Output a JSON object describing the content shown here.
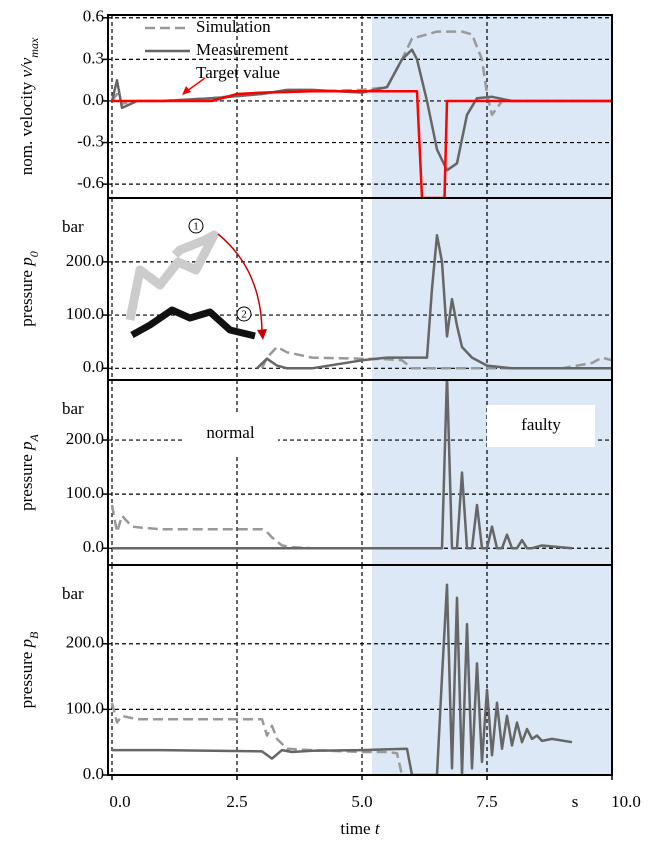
{
  "chart_data": [
    {
      "type": "line",
      "ylabel": [
        "nom. velocity ",
        "v/v",
        "max"
      ],
      "xlim": [
        -0.08,
        10
      ],
      "ylim": [
        -0.7,
        0.62
      ],
      "yticks": [
        {
          "value": 0.6,
          "label": "0.6"
        },
        {
          "value": 0.3,
          "label": "0.3"
        },
        {
          "value": 0,
          "label": "0.0"
        },
        {
          "value": -0.3,
          "label": "-0.3"
        },
        {
          "value": -0.6,
          "label": "-0.6"
        }
      ],
      "grid": true,
      "shade": {
        "x": [
          5.2,
          10
        ],
        "color": "#dce8f5"
      },
      "series": [
        {
          "name": "Simulation",
          "color": "#999999",
          "dashed": true,
          "x": [
            0,
            0.1,
            0.2,
            0.5,
            1,
            2,
            3,
            4,
            5,
            5.5,
            5.8,
            6,
            6.2,
            6.5,
            7,
            7.2,
            7.4,
            7.5,
            7.6,
            7.8,
            8,
            8.5,
            9,
            10
          ],
          "values": [
            0,
            0.05,
            -0.02,
            0,
            0,
            0.02,
            0.06,
            0.07,
            0.08,
            0.1,
            0.3,
            0.45,
            0.47,
            0.5,
            0.5,
            0.48,
            0.3,
            0.05,
            -0.1,
            0,
            0,
            0,
            0,
            0
          ]
        },
        {
          "name": "Measurement",
          "color": "#666666",
          "dashed": false,
          "x": [
            0,
            0.1,
            0.2,
            0.5,
            1,
            2,
            3,
            3.5,
            4,
            5,
            5.5,
            5.8,
            6,
            6.1,
            6.3,
            6.5,
            6.7,
            6.9,
            7.1,
            7.3,
            7.6,
            8,
            8.5,
            9,
            10
          ],
          "values": [
            0,
            0.15,
            -0.05,
            0,
            0,
            0.02,
            0.05,
            0.08,
            0.08,
            0.06,
            0.1,
            0.3,
            0.37,
            0.3,
            0,
            -0.35,
            -0.5,
            -0.45,
            -0.1,
            0.02,
            0.03,
            0,
            0,
            0,
            0
          ]
        },
        {
          "name": "Target value",
          "color": "#ff0000",
          "dashed": false,
          "x": [
            0,
            2,
            2.5,
            3,
            4,
            5.5,
            6.1,
            6.2,
            6.25,
            6.6,
            6.65,
            6.7,
            7,
            10
          ],
          "values": [
            0,
            0,
            0.05,
            0.06,
            0.07,
            0.07,
            0.07,
            -0.7,
            -0.7,
            -0.7,
            -0.7,
            0,
            0,
            0
          ]
        }
      ]
    },
    {
      "type": "line",
      "ylabel": [
        "pressure ",
        "p",
        "0"
      ],
      "yunit": "bar",
      "xlim": [
        -0.08,
        10
      ],
      "ylim": [
        -22,
        320
      ],
      "yticks": [
        {
          "value": 200,
          "label": "200.0"
        },
        {
          "value": 100,
          "label": "100.0"
        },
        {
          "value": 0,
          "label": "0.0"
        }
      ],
      "grid": true,
      "shade": {
        "x": [
          5.2,
          10
        ],
        "color": "#dce8f5"
      },
      "annotations": [
        "1",
        "2"
      ],
      "series": [
        {
          "name": "Simulation",
          "color": "#999999",
          "dashed": true,
          "x": [
            3,
            3.1,
            3.3,
            3.5,
            4,
            5,
            5.5,
            5.8,
            6,
            7,
            8,
            9,
            9.6,
            9.8,
            10
          ],
          "values": [
            0,
            20,
            40,
            30,
            20,
            18,
            17,
            15,
            0,
            0,
            0,
            0,
            10,
            20,
            15
          ]
        },
        {
          "name": "Measurement",
          "color": "#666666",
          "dashed": false,
          "x": [
            2.9,
            3.1,
            3.3,
            3.5,
            4,
            5,
            5.5,
            6,
            6.3,
            6.4,
            6.5,
            6.6,
            6.7,
            6.8,
            6.9,
            7,
            7.2,
            7.5,
            8,
            10
          ],
          "values": [
            0,
            18,
            5,
            0,
            0,
            15,
            20,
            20,
            20,
            150,
            250,
            200,
            60,
            130,
            80,
            40,
            20,
            5,
            0,
            0
          ]
        }
      ]
    },
    {
      "type": "line",
      "ylabel": [
        "pressure ",
        "p",
        "A"
      ],
      "yunit": "bar",
      "xlim": [
        -0.08,
        10
      ],
      "ylim": [
        -31,
        311
      ],
      "yticks": [
        {
          "value": 200,
          "label": "200.0"
        },
        {
          "value": 100,
          "label": "100.0"
        },
        {
          "value": 0,
          "label": "0.0"
        }
      ],
      "grid": true,
      "shade": {
        "x": [
          5.2,
          10
        ],
        "color": "#dce8f5"
      },
      "annotations": [
        "normal",
        "faulty"
      ],
      "series": [
        {
          "name": "Simulation",
          "color": "#999999",
          "dashed": true,
          "x": [
            0,
            0.1,
            0.2,
            0.4,
            0.6,
            1,
            2,
            3,
            3.1,
            3.2,
            3.4,
            3.6,
            4,
            5,
            5.6
          ],
          "values": [
            80,
            30,
            60,
            40,
            38,
            35,
            35,
            35,
            30,
            20,
            5,
            2,
            0,
            0,
            0
          ]
        },
        {
          "name": "Measurement",
          "color": "#666666",
          "dashed": false,
          "x": [
            0,
            3,
            6.6,
            6.7,
            6.8,
            6.9,
            7,
            7.1,
            7.2,
            7.3,
            7.4,
            7.5,
            7.6,
            7.7,
            7.8,
            7.9,
            8,
            8.1,
            8.2,
            8.3,
            8.4,
            8.6,
            9.2
          ],
          "values": [
            0,
            0,
            0,
            320,
            0,
            0,
            140,
            0,
            0,
            80,
            0,
            0,
            40,
            0,
            0,
            25,
            0,
            0,
            15,
            0,
            0,
            5,
            0
          ]
        }
      ]
    },
    {
      "type": "line",
      "ylabel": [
        "pressure ",
        "p",
        "B"
      ],
      "yunit": "bar",
      "xlabel": [
        "time ",
        "t"
      ],
      "xunit": "s",
      "xlim": [
        -0.08,
        10
      ],
      "ylim": [
        0,
        320
      ],
      "xticks": [
        {
          "value": 0,
          "label": "0.0"
        },
        {
          "value": 2.5,
          "label": "2.5"
        },
        {
          "value": 5,
          "label": "5.0"
        },
        {
          "value": 7.5,
          "label": "7.5"
        },
        {
          "value": 10,
          "label": "10.0"
        }
      ],
      "yticks": [
        {
          "value": 200,
          "label": "200.0"
        },
        {
          "value": 100,
          "label": "100.0"
        },
        {
          "value": 0,
          "label": "0.0"
        }
      ],
      "grid": true,
      "shade": {
        "x": [
          5.2,
          10
        ],
        "color": "#dce8f5"
      },
      "series": [
        {
          "name": "Simulation",
          "color": "#999999",
          "dashed": true,
          "x": [
            0,
            0.1,
            0.2,
            0.5,
            1,
            2,
            3,
            3.1,
            3.2,
            3.3,
            3.5,
            4,
            5,
            5.5,
            5.7,
            5.8
          ],
          "values": [
            110,
            80,
            90,
            85,
            85,
            85,
            85,
            60,
            75,
            55,
            40,
            38,
            35,
            35,
            33,
            0
          ]
        },
        {
          "name": "Measurement",
          "color": "#666666",
          "dashed": false,
          "x": [
            0,
            1,
            2,
            3,
            3.2,
            3.4,
            3.6,
            4,
            5,
            5.9,
            6,
            6.3,
            6.5,
            6.6,
            6.7,
            6.8,
            6.9,
            7,
            7.1,
            7.2,
            7.3,
            7.4,
            7.5,
            7.6,
            7.7,
            7.8,
            7.9,
            8,
            8.1,
            8.2,
            8.3,
            8.4,
            8.5,
            8.6,
            8.8,
            9.2
          ],
          "values": [
            38,
            38,
            37,
            36,
            25,
            38,
            35,
            37,
            38,
            40,
            0,
            0,
            0,
            150,
            290,
            10,
            270,
            0,
            230,
            10,
            170,
            20,
            130,
            30,
            110,
            40,
            90,
            45,
            80,
            50,
            70,
            55,
            60,
            52,
            55,
            50
          ]
        }
      ]
    }
  ]
}
